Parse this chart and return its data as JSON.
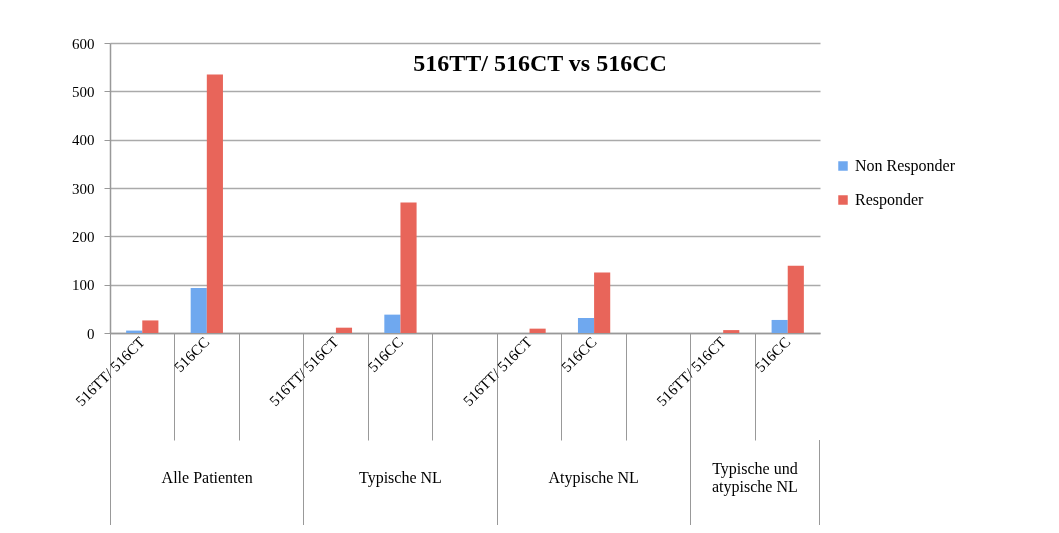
{
  "chart_data": {
    "type": "bar",
    "title": "516TT/ 516CT vs 516CC",
    "categories": [
      "516TT/ 516CT",
      "516CC",
      null,
      "516TT/ 516CT",
      "516CC",
      null,
      "516TT/ 516CT",
      "516CC",
      null,
      "516TT/ 516CT",
      "516CC"
    ],
    "series": [
      {
        "name": "Non Responder",
        "color": "#6fa8ef",
        "values": [
          5,
          93,
          null,
          null,
          38,
          null,
          null,
          31,
          null,
          null,
          27
        ]
      },
      {
        "name": "Responder",
        "color": "#e8655a",
        "values": [
          26,
          535,
          null,
          11,
          270,
          null,
          9,
          125,
          null,
          6,
          139
        ]
      }
    ],
    "annotations": [
      "Alle Patienten",
      "Typische NL",
      "Atypische NL",
      "Typische und atypische NL"
    ],
    "ylim": [
      0,
      600
    ],
    "yticks": [
      0,
      100,
      200,
      300,
      400,
      500,
      600
    ],
    "grid": "y",
    "legend": "right"
  }
}
